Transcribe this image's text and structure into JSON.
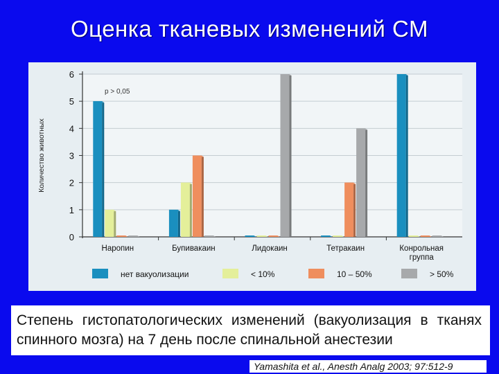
{
  "slide": {
    "title": "Оценка тканевых изменений СМ",
    "caption": "Степень гистопатологических изменений (вакуолизация в тканях спинного мозга) на 7 день после спинальной анестезии",
    "citation": "Yamashita et al., Anesth Analg 2003; 97:512-9"
  },
  "chart_data": {
    "type": "bar",
    "title": "",
    "ylabel": "Количество животных",
    "xlabel": "",
    "ylim": [
      0,
      6
    ],
    "yticks": [
      "0",
      "1",
      "2",
      "3",
      "4",
      "5",
      "6"
    ],
    "grid": true,
    "legend_position": "bottom",
    "annotation": "p > 0,05",
    "categories": [
      [
        "Наропин"
      ],
      [
        "Бупивакаин"
      ],
      [
        "Лидокаин"
      ],
      [
        "Тетракаин"
      ],
      [
        "Конрольная",
        "группа"
      ]
    ],
    "series": [
      {
        "name": "нет вакуолизации",
        "color": "#1a8fbf",
        "values": [
          5,
          1,
          0,
          0,
          6
        ]
      },
      {
        "name": "< 10%",
        "color": "#e4ef9a",
        "values": [
          1,
          2,
          0,
          0,
          0
        ]
      },
      {
        "name": "10 – 50%",
        "color": "#ef8e5e",
        "values": [
          0,
          3,
          0,
          2,
          0
        ]
      },
      {
        "name": "> 50%",
        "color": "#a7a9ab",
        "values": [
          0,
          0,
          6,
          4,
          0
        ]
      }
    ]
  }
}
